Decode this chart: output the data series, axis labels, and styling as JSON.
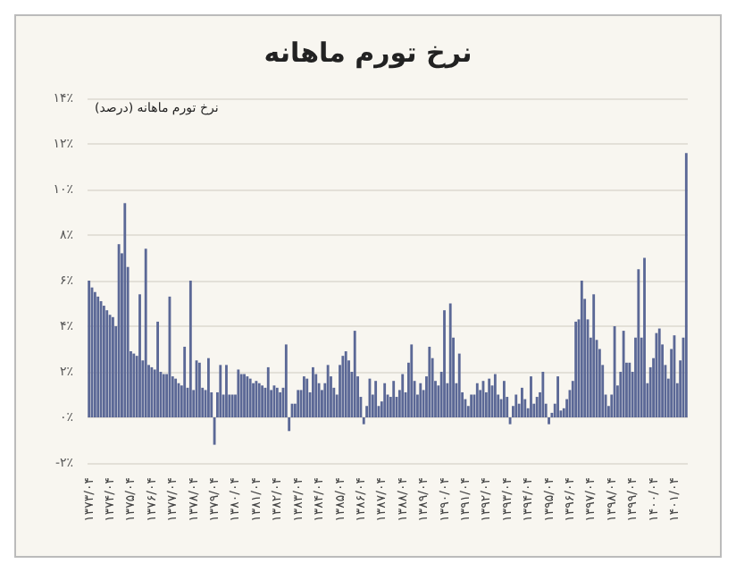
{
  "chart_data": {
    "type": "bar",
    "title": "نرخ تورم ماهانه",
    "ylabel": "نرخ تورم ماهانه (درصد)",
    "color": "#5b6896",
    "categories": [
      "۱۳۷۳/۰۴",
      null,
      null,
      null,
      null,
      null,
      null,
      "۱۳۷۴/۰۴",
      null,
      null,
      null,
      null,
      null,
      null,
      "۱۳۷۵/۰۴",
      null,
      null,
      null,
      null,
      null,
      null,
      "۱۳۷۶/۰۴",
      null,
      null,
      null,
      null,
      null,
      null,
      "۱۳۷۷/۰۴",
      null,
      null,
      null,
      null,
      null,
      null,
      "۱۳۷۸/۰۴",
      null,
      null,
      null,
      null,
      null,
      null,
      "۱۳۷۹/۰۴",
      null,
      null,
      null,
      null,
      null,
      null,
      "۱۳۸۰/۰۴",
      null,
      null,
      null,
      null,
      null,
      null,
      "۱۳۸۱/۰۴",
      null,
      null,
      null,
      null,
      null,
      null,
      "۱۳۸۲/۰۴",
      null,
      null,
      null,
      null,
      null,
      null,
      "۱۳۸۳/۰۴",
      null,
      null,
      null,
      null,
      null,
      null,
      "۱۳۸۴/۰۴",
      null,
      null,
      null,
      null,
      null,
      null,
      "۱۳۸۵/۰۴",
      null,
      null,
      null,
      null,
      null,
      null,
      "۱۳۸۶/۰۴",
      null,
      null,
      null,
      null,
      null,
      null,
      "۱۳۸۷/۰۴",
      null,
      null,
      null,
      null,
      null,
      null,
      "۱۳۸۸/۰۴",
      null,
      null,
      null,
      null,
      null,
      null,
      "۱۳۸۹/۰۴",
      null,
      null,
      null,
      null,
      null,
      null,
      "۱۳۹۰/۰۴",
      null,
      null,
      null,
      null,
      null,
      null,
      "۱۳۹۱/۰۴",
      null,
      null,
      null,
      null,
      null,
      null,
      "۱۳۹۲/۰۴",
      null,
      null,
      null,
      null,
      null,
      null,
      "۱۳۹۳/۰۴",
      null,
      null,
      null,
      null,
      null,
      null,
      "۱۳۹۴/۰۴",
      null,
      null,
      null,
      null,
      null,
      null,
      "۱۳۹۵/۰۴",
      null,
      null,
      null,
      null,
      null,
      null,
      "۱۳۹۶/۰۴",
      null,
      null,
      null,
      null,
      null,
      null,
      "۱۳۹۷/۰۴",
      null,
      null,
      null,
      null,
      null,
      null,
      "۱۳۹۸/۰۴",
      null,
      null,
      null,
      null,
      null,
      null,
      "۱۳۹۹/۰۴",
      null,
      null,
      null,
      null,
      null,
      null,
      "۱۴۰۰/۰۴",
      null,
      null,
      null,
      null,
      null,
      null,
      "۱۴۰۱/۰۴",
      null,
      null,
      null,
      null
    ],
    "values": [
      6.0,
      5.7,
      5.5,
      5.3,
      5.1,
      4.9,
      4.7,
      4.5,
      4.4,
      4.0,
      7.6,
      7.2,
      9.4,
      6.6,
      2.9,
      2.8,
      2.7,
      5.4,
      2.5,
      7.4,
      2.3,
      2.2,
      2.1,
      4.2,
      2.0,
      1.9,
      1.9,
      5.3,
      1.8,
      1.7,
      1.5,
      1.4,
      3.1,
      1.3,
      6.0,
      1.2,
      2.5,
      2.4,
      1.3,
      1.2,
      2.6,
      1.1,
      -1.2,
      1.1,
      2.3,
      1.0,
      2.3,
      1.0,
      1.0,
      1.0,
      2.1,
      1.9,
      1.9,
      1.8,
      1.7,
      1.5,
      1.6,
      1.5,
      1.4,
      1.3,
      2.2,
      1.2,
      1.4,
      1.3,
      1.1,
      1.3,
      3.2,
      -0.6,
      0.6,
      0.6,
      1.2,
      1.2,
      1.8,
      1.7,
      1.1,
      2.2,
      1.9,
      1.5,
      1.2,
      1.5,
      2.3,
      1.8,
      1.3,
      1.0,
      2.3,
      2.7,
      2.9,
      2.5,
      2.0,
      3.8,
      1.8,
      0.9,
      -0.3,
      0.5,
      1.7,
      1.0,
      1.6,
      0.5,
      0.7,
      1.5,
      1.0,
      0.9,
      1.6,
      0.9,
      1.2,
      1.9,
      1.1,
      2.4,
      3.2,
      1.6,
      1.0,
      1.5,
      1.2,
      1.8,
      3.1,
      2.6,
      1.6,
      1.4,
      2.0,
      4.7,
      1.5,
      5.0,
      3.5,
      1.5,
      2.8,
      1.1,
      0.8,
      0.5,
      1.0,
      1.0,
      1.5,
      1.2,
      1.6,
      1.1,
      1.7,
      1.4,
      1.9,
      1.0,
      0.8,
      1.6,
      0.9,
      -0.3,
      0.5,
      1.0,
      0.6,
      1.3,
      0.8,
      0.4,
      1.8,
      0.6,
      0.9,
      1.1,
      2.0,
      0.6,
      -0.3,
      0.2,
      0.6,
      1.8,
      0.3,
      0.4,
      0.8,
      1.2,
      1.6,
      4.2,
      4.3,
      6.0,
      5.2,
      4.3,
      3.5,
      5.4,
      3.4,
      3.0,
      2.3,
      1.0,
      0.5,
      1.0,
      4.0,
      1.4,
      2.0,
      3.8,
      2.4,
      2.4,
      2.0,
      3.5,
      6.5,
      3.5,
      7.0,
      1.5,
      2.2,
      2.6,
      3.7,
      3.9,
      3.2,
      2.3,
      1.7,
      3.0,
      3.6,
      1.5,
      2.5,
      3.5,
      11.6
    ],
    "ylim": [
      -2,
      14
    ],
    "yticks": [
      {
        "value": -2,
        "label": "-۲٪"
      },
      {
        "value": 0,
        "label": "۰٪"
      },
      {
        "value": 2,
        "label": "۲٪"
      },
      {
        "value": 4,
        "label": "۴٪"
      },
      {
        "value": 6,
        "label": "۶٪"
      },
      {
        "value": 8,
        "label": "۸٪"
      },
      {
        "value": 10,
        "label": "۱۰٪"
      },
      {
        "value": 12,
        "label": "۱۲٪"
      },
      {
        "value": 14,
        "label": "۱۴٪"
      }
    ],
    "grid": "y"
  }
}
